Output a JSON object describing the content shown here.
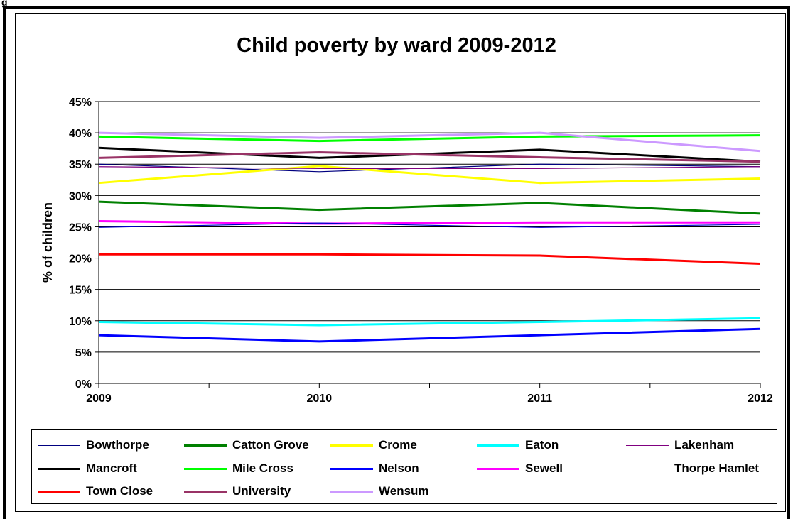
{
  "page_label": "g",
  "chart_data": {
    "type": "line",
    "title": "Child poverty by ward 2009-2012",
    "ylabel": "% of children",
    "xlabel": "",
    "x": [
      "2009",
      "2010",
      "2011",
      "2012"
    ],
    "ylim": [
      0,
      45
    ],
    "yticks": [
      "0%",
      "5%",
      "10%",
      "15%",
      "20%",
      "25%",
      "30%",
      "35%",
      "40%",
      "45%"
    ],
    "grid": "horizontal",
    "legend_position": "bottom",
    "series": [
      {
        "name": "Bowthorpe",
        "color": "#000080",
        "width": 1.2,
        "values": [
          35.0,
          33.8,
          35.0,
          34.6
        ]
      },
      {
        "name": "Catton Grove",
        "color": "#008000",
        "width": 3,
        "values": [
          29.0,
          27.7,
          28.8,
          27.1
        ]
      },
      {
        "name": "Crome",
        "color": "#FFFF00",
        "width": 3,
        "values": [
          32.0,
          34.7,
          32.0,
          32.7
        ]
      },
      {
        "name": "Eaton",
        "color": "#00FFFF",
        "width": 3,
        "values": [
          9.8,
          9.3,
          9.8,
          10.4
        ]
      },
      {
        "name": "Lakenham",
        "color": "#800080",
        "width": 1.2,
        "values": [
          34.6,
          34.3,
          34.3,
          34.6
        ]
      },
      {
        "name": "Mancroft",
        "color": "#000000",
        "width": 3,
        "values": [
          37.6,
          36.0,
          37.3,
          35.4
        ]
      },
      {
        "name": "Mile Cross",
        "color": "#00FF00",
        "width": 3,
        "values": [
          39.4,
          38.7,
          39.4,
          39.6
        ]
      },
      {
        "name": "Nelson",
        "color": "#0000FF",
        "width": 3,
        "values": [
          7.7,
          6.7,
          7.7,
          8.7
        ]
      },
      {
        "name": "Sewell",
        "color": "#FF00FF",
        "width": 3,
        "values": [
          25.9,
          25.5,
          25.7,
          25.7
        ]
      },
      {
        "name": "Thorpe Hamlet",
        "color": "#0000CC",
        "width": 1.2,
        "values": [
          24.9,
          25.6,
          24.9,
          25.4
        ]
      },
      {
        "name": "Town Close",
        "color": "#FF0000",
        "width": 3,
        "values": [
          20.6,
          20.6,
          20.4,
          19.1
        ]
      },
      {
        "name": "University",
        "color": "#993366",
        "width": 3,
        "values": [
          36.0,
          36.9,
          36.1,
          35.4
        ]
      },
      {
        "name": "Wensum",
        "color": "#CC99FF",
        "width": 3,
        "values": [
          40.0,
          39.2,
          40.0,
          37.1
        ]
      }
    ]
  }
}
